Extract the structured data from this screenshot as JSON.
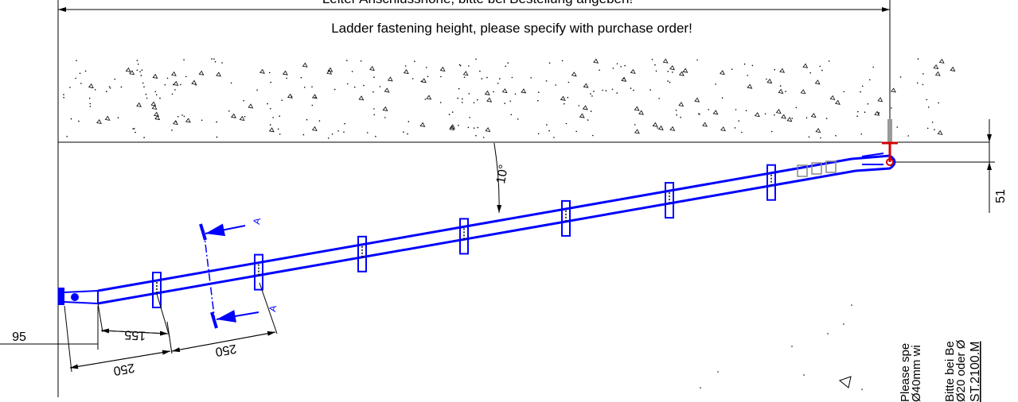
{
  "title_de": "Leiter Anschlusshöhe, bitte bei Bestellung angeben!",
  "title_en": "Ladder fastening height, please specify with purchase order!",
  "angle_label": "10°",
  "dim_top_right": "51",
  "dim_left": "95",
  "dim_155": "155",
  "dim_250_a": "250",
  "dim_250_b": "250",
  "section_marker_top": "A",
  "section_marker_bottom": "A",
  "note_lines": [
    "ST.2100.M",
    "Bitte bei Be",
    "Ø20 oder Ø",
    "Please spe",
    "Ø40mm wi"
  ],
  "colors": {
    "ladder": "#0000ff",
    "bracket": "#d40000",
    "line": "#000000"
  }
}
